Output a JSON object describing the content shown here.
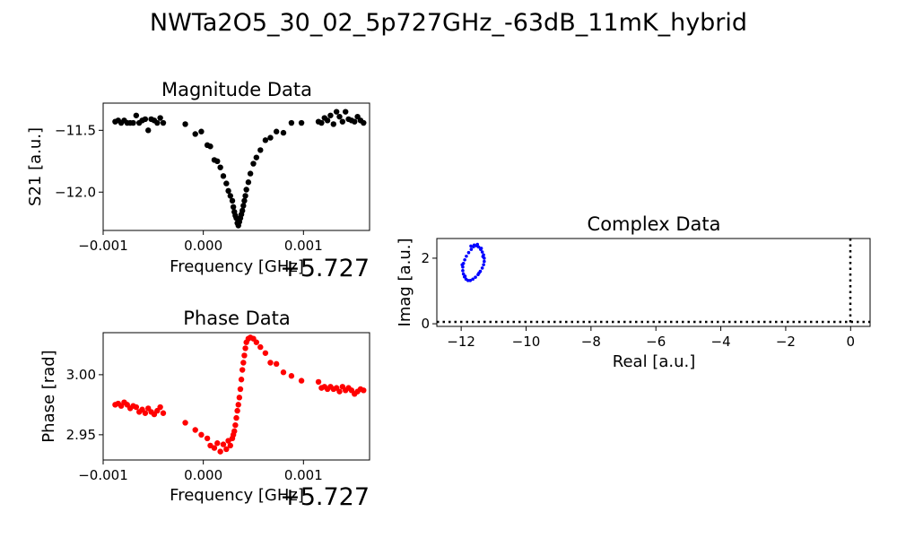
{
  "figure": {
    "suptitle": "NWTa2O5_30_02_5p727GHz_-63dB_11mK_hybrid"
  },
  "chart_data": [
    {
      "id": "magnitude",
      "type": "scatter",
      "title": "Magnitude Data",
      "xlabel": "Frequency [GHz]",
      "ylabel": "S21 [a.u.]",
      "x_offset_label": "+5.727",
      "xlim": [
        -0.001,
        0.00166
      ],
      "ylim": [
        -12.31,
        -11.28
      ],
      "xticks": [
        -0.001,
        0.0,
        0.001
      ],
      "xtick_labels": [
        "−0.001",
        "0.000",
        "0.001"
      ],
      "yticks": [
        -12.0,
        -11.5
      ],
      "ytick_labels": [
        "−12.0",
        "−11.5"
      ],
      "marker_color": "#000000",
      "x": [
        -0.00088,
        -0.00085,
        -0.00082,
        -0.00079,
        -0.00076,
        -0.00073,
        -0.0007,
        -0.00067,
        -0.00064,
        -0.00061,
        -0.00058,
        -0.00055,
        -0.00052,
        -0.00049,
        -0.00046,
        -0.00043,
        -0.0004,
        -0.00018,
        -8e-05,
        -2e-05,
        4e-05,
        7e-05,
        0.00011,
        0.00014,
        0.00017,
        0.0002,
        0.00023,
        0.00025,
        0.00027,
        0.00029,
        0.0003,
        0.00031,
        0.00032,
        0.00033,
        0.00034,
        0.00035,
        0.00036,
        0.00037,
        0.00038,
        0.00039,
        0.0004,
        0.00041,
        0.00042,
        0.00043,
        0.00045,
        0.00047,
        0.0005,
        0.00053,
        0.00057,
        0.00062,
        0.00067,
        0.00073,
        0.0008,
        0.00088,
        0.00098,
        0.00115,
        0.00118,
        0.00121,
        0.00124,
        0.00127,
        0.0013,
        0.00133,
        0.00136,
        0.00139,
        0.00142,
        0.00145,
        0.00148,
        0.00151,
        0.00154,
        0.00157,
        0.0016
      ],
      "y": [
        -11.43,
        -11.42,
        -11.44,
        -11.42,
        -11.44,
        -11.44,
        -11.44,
        -11.38,
        -11.44,
        -11.42,
        -11.41,
        -11.5,
        -11.41,
        -11.42,
        -11.44,
        -11.4,
        -11.44,
        -11.45,
        -11.53,
        -11.51,
        -11.62,
        -11.63,
        -11.74,
        -11.75,
        -11.8,
        -11.87,
        -11.93,
        -11.99,
        -12.03,
        -12.07,
        -12.12,
        -12.16,
        -12.19,
        -12.21,
        -12.25,
        -12.27,
        -12.24,
        -12.21,
        -12.18,
        -12.15,
        -12.11,
        -12.07,
        -12.03,
        -11.98,
        -11.92,
        -11.85,
        -11.77,
        -11.72,
        -11.66,
        -11.58,
        -11.56,
        -11.51,
        -11.52,
        -11.44,
        -11.44,
        -11.43,
        -11.44,
        -11.4,
        -11.42,
        -11.38,
        -11.45,
        -11.35,
        -11.39,
        -11.43,
        -11.35,
        -11.41,
        -11.42,
        -11.43,
        -11.39,
        -11.42,
        -11.44
      ]
    },
    {
      "id": "phase",
      "type": "scatter",
      "title": "Phase Data",
      "xlabel": "Frequency [GHz]",
      "ylabel": "Phase [rad]",
      "x_offset_label": "+5.727",
      "xlim": [
        -0.001,
        0.00166
      ],
      "ylim": [
        2.929,
        3.035
      ],
      "xticks": [
        -0.001,
        0.0,
        0.001
      ],
      "xtick_labels": [
        "−0.001",
        "0.000",
        "0.001"
      ],
      "yticks": [
        2.95,
        3.0
      ],
      "ytick_labels": [
        "2.95",
        "3.00"
      ],
      "marker_color": "#ff0000",
      "x": [
        -0.00088,
        -0.00085,
        -0.00082,
        -0.00079,
        -0.00076,
        -0.00073,
        -0.0007,
        -0.00067,
        -0.00064,
        -0.00061,
        -0.00058,
        -0.00055,
        -0.00052,
        -0.00049,
        -0.00046,
        -0.00043,
        -0.0004,
        -0.00018,
        -8e-05,
        -2e-05,
        4e-05,
        7e-05,
        0.00011,
        0.00014,
        0.00017,
        0.0002,
        0.00023,
        0.00025,
        0.00027,
        0.00029,
        0.0003,
        0.00031,
        0.00032,
        0.00033,
        0.00034,
        0.00035,
        0.00036,
        0.00037,
        0.00038,
        0.00039,
        0.0004,
        0.00041,
        0.00042,
        0.00043,
        0.00045,
        0.00047,
        0.0005,
        0.00053,
        0.00057,
        0.00062,
        0.00067,
        0.00073,
        0.0008,
        0.00088,
        0.00098,
        0.00115,
        0.00118,
        0.00121,
        0.00124,
        0.00127,
        0.0013,
        0.00133,
        0.00136,
        0.00139,
        0.00142,
        0.00145,
        0.00148,
        0.00151,
        0.00154,
        0.00157,
        0.0016
      ],
      "y": [
        2.975,
        2.976,
        2.974,
        2.977,
        2.975,
        2.972,
        2.974,
        2.973,
        2.969,
        2.971,
        2.968,
        2.972,
        2.969,
        2.967,
        2.97,
        2.973,
        2.968,
        2.96,
        2.954,
        2.95,
        2.947,
        2.941,
        2.939,
        2.943,
        2.936,
        2.942,
        2.938,
        2.945,
        2.941,
        2.947,
        2.95,
        2.953,
        2.958,
        2.964,
        2.97,
        2.975,
        2.981,
        2.988,
        2.996,
        3.004,
        3.01,
        3.016,
        3.022,
        3.027,
        3.03,
        3.031,
        3.03,
        3.027,
        3.023,
        3.018,
        3.01,
        3.009,
        3.002,
        2.999,
        2.995,
        2.994,
        2.989,
        2.99,
        2.988,
        2.99,
        2.988,
        2.989,
        2.986,
        2.99,
        2.987,
        2.989,
        2.987,
        2.984,
        2.986,
        2.988,
        2.987
      ]
    },
    {
      "id": "complex",
      "type": "scatter",
      "title": "Complex Data",
      "xlabel": "Real [a.u.]",
      "ylabel": "Imag [a.u.]",
      "xlim": [
        -12.75,
        0.6
      ],
      "ylim": [
        -0.08,
        2.6
      ],
      "xticks": [
        -12,
        -10,
        -8,
        -6,
        -4,
        -2,
        0
      ],
      "xtick_labels": [
        "−12",
        "−10",
        "−8",
        "−6",
        "−4",
        "−2",
        "0"
      ],
      "yticks": [
        0,
        2
      ],
      "ytick_labels": [
        "0",
        "2"
      ],
      "reference_lines": {
        "x": 0,
        "y": 0,
        "style": "dotted",
        "color": "#000000"
      },
      "marker_color": "#0000ff",
      "x": [
        -11.6,
        -11.53,
        -11.46,
        -11.4,
        -11.35,
        -11.31,
        -11.29,
        -11.29,
        -11.31,
        -11.35,
        -11.41,
        -11.48,
        -11.56,
        -11.64,
        -11.72,
        -11.79,
        -11.85,
        -11.9,
        -11.93,
        -11.95,
        -11.95,
        -11.93,
        -11.89,
        -11.84,
        -11.77,
        -11.69,
        -11.62,
        -11.5,
        -11.38,
        -11.33,
        -11.88,
        -11.97,
        -11.7,
        -11.45
      ],
      "y": [
        2.4,
        2.38,
        2.34,
        2.27,
        2.19,
        2.1,
        2.0,
        1.9,
        1.8,
        1.7,
        1.6,
        1.5,
        1.42,
        1.36,
        1.32,
        1.32,
        1.36,
        1.43,
        1.52,
        1.62,
        1.73,
        1.84,
        1.95,
        2.06,
        2.17,
        2.27,
        2.35,
        2.42,
        2.3,
        2.05,
        1.45,
        1.8,
        2.37,
        1.55
      ]
    }
  ]
}
